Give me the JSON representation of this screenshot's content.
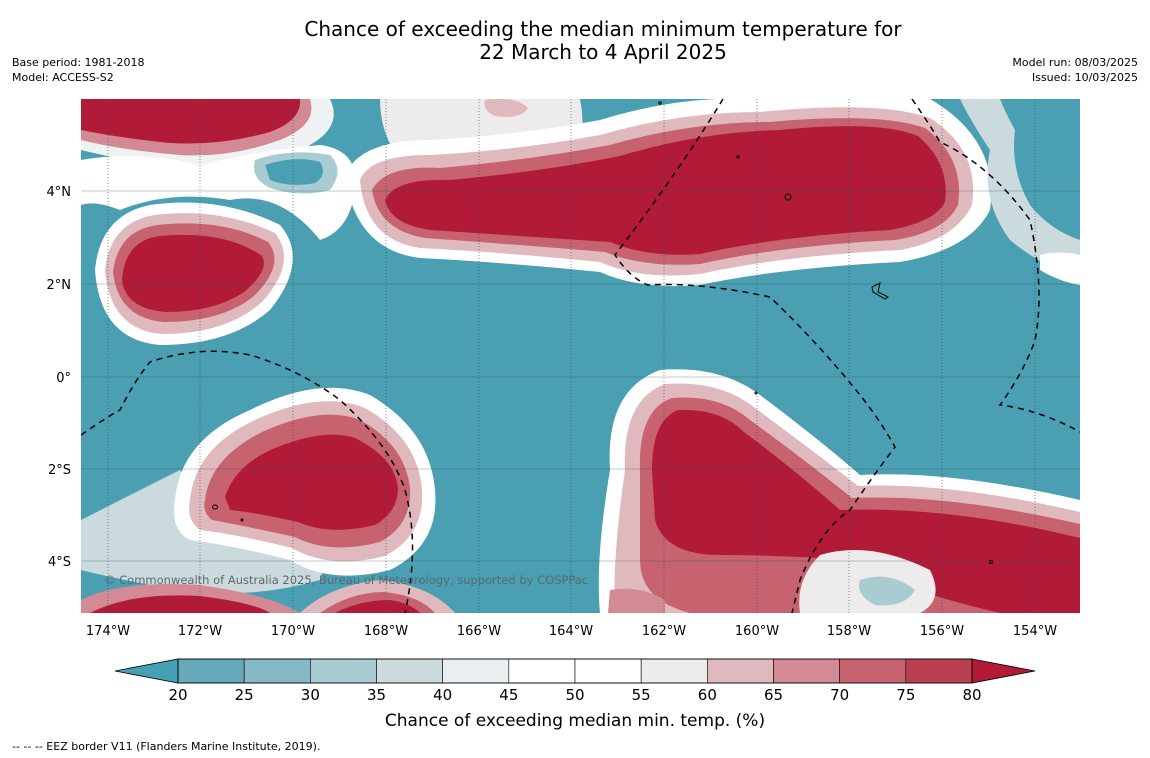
{
  "title": {
    "line1": "Chance of exceeding the median minimum temperature for",
    "line2": "22 March to 4 April 2025"
  },
  "meta": {
    "base_period": "Base period: 1981-2018",
    "model": "Model: ACCESS-S2",
    "model_run": "Model run: 08/03/2025",
    "issued": "Issued: 10/03/2025"
  },
  "map": {
    "lon_labels": [
      "174°W",
      "172°W",
      "170°W",
      "168°W",
      "166°W",
      "164°W",
      "162°W",
      "160°W",
      "158°W",
      "156°W",
      "154°W"
    ],
    "lat_labels": [
      "4°N",
      "2°N",
      "0°",
      "2°S",
      "4°S"
    ],
    "copyright": "© Commonwealth of Australia 2025, Bureau of Meteorology, supported by COSPPac",
    "base_color": "#4a9fb2"
  },
  "colorbar": {
    "ticks": [
      "20",
      "25",
      "30",
      "35",
      "40",
      "45",
      "50",
      "55",
      "60",
      "65",
      "70",
      "75",
      "80"
    ],
    "colors": [
      "#65a9bb",
      "#86b9c6",
      "#a9cbd2",
      "#cbdadd",
      "#e9eff1",
      "#ffffff",
      "#ffffff",
      "#eeebec",
      "#e0b9be",
      "#d48a95",
      "#c7626f",
      "#ba3f51"
    ],
    "low_color": "#45a0b3",
    "high_color": "#b21b38",
    "label": "Chance of exceeding median min. temp. (%)"
  },
  "legend_note": "--  --  -- EEZ border V11 (Flanders Marine Institute, 2019)."
}
